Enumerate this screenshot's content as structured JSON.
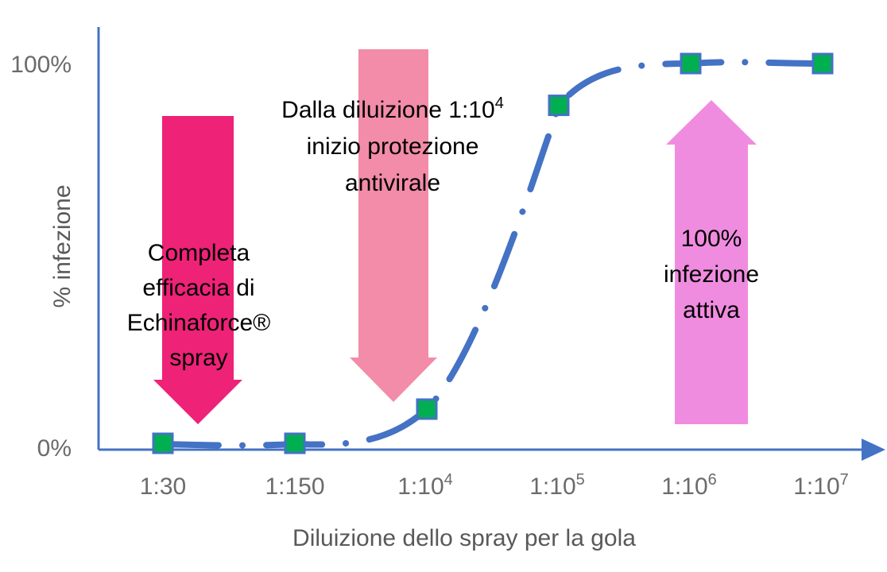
{
  "chart_data": {
    "type": "line",
    "xlabel": "Diluizione dello spray per la gola",
    "ylabel": "% infezione",
    "categories": [
      {
        "base": "1:30",
        "sup": ""
      },
      {
        "base": "1:150",
        "sup": ""
      },
      {
        "base": "1:10",
        "sup": "4"
      },
      {
        "base": "1:10",
        "sup": "5"
      },
      {
        "base": "1:10",
        "sup": "6"
      },
      {
        "base": "1:10",
        "sup": "7"
      }
    ],
    "series": [
      {
        "values": [
          0,
          0,
          9,
          89,
          100,
          100
        ]
      }
    ],
    "y_ticks": [
      {
        "value": 0,
        "label": "0%"
      },
      {
        "value": 100,
        "label": "100%"
      }
    ],
    "ylim": [
      0,
      100
    ],
    "grid": false,
    "annotations": {
      "efficacy": [
        "Completa",
        "efficacia di",
        "Echinaforce®",
        "spray"
      ],
      "protection": [
        {
          "base": "Dalla diluizione 1:10",
          "sup": "4"
        },
        {
          "base": "inizio protezione",
          "sup": ""
        },
        {
          "base": "antivirale",
          "sup": ""
        }
      ],
      "active": [
        "100%",
        "infezione",
        "attiva"
      ]
    },
    "colors": {
      "line": "#4472C4",
      "marker_fill": "#00B050",
      "marker_border": "#4472C4",
      "arrow_efficacy": "#EE2277",
      "arrow_protection": "#F28CA8",
      "arrow_active": "#F08CE0"
    }
  }
}
